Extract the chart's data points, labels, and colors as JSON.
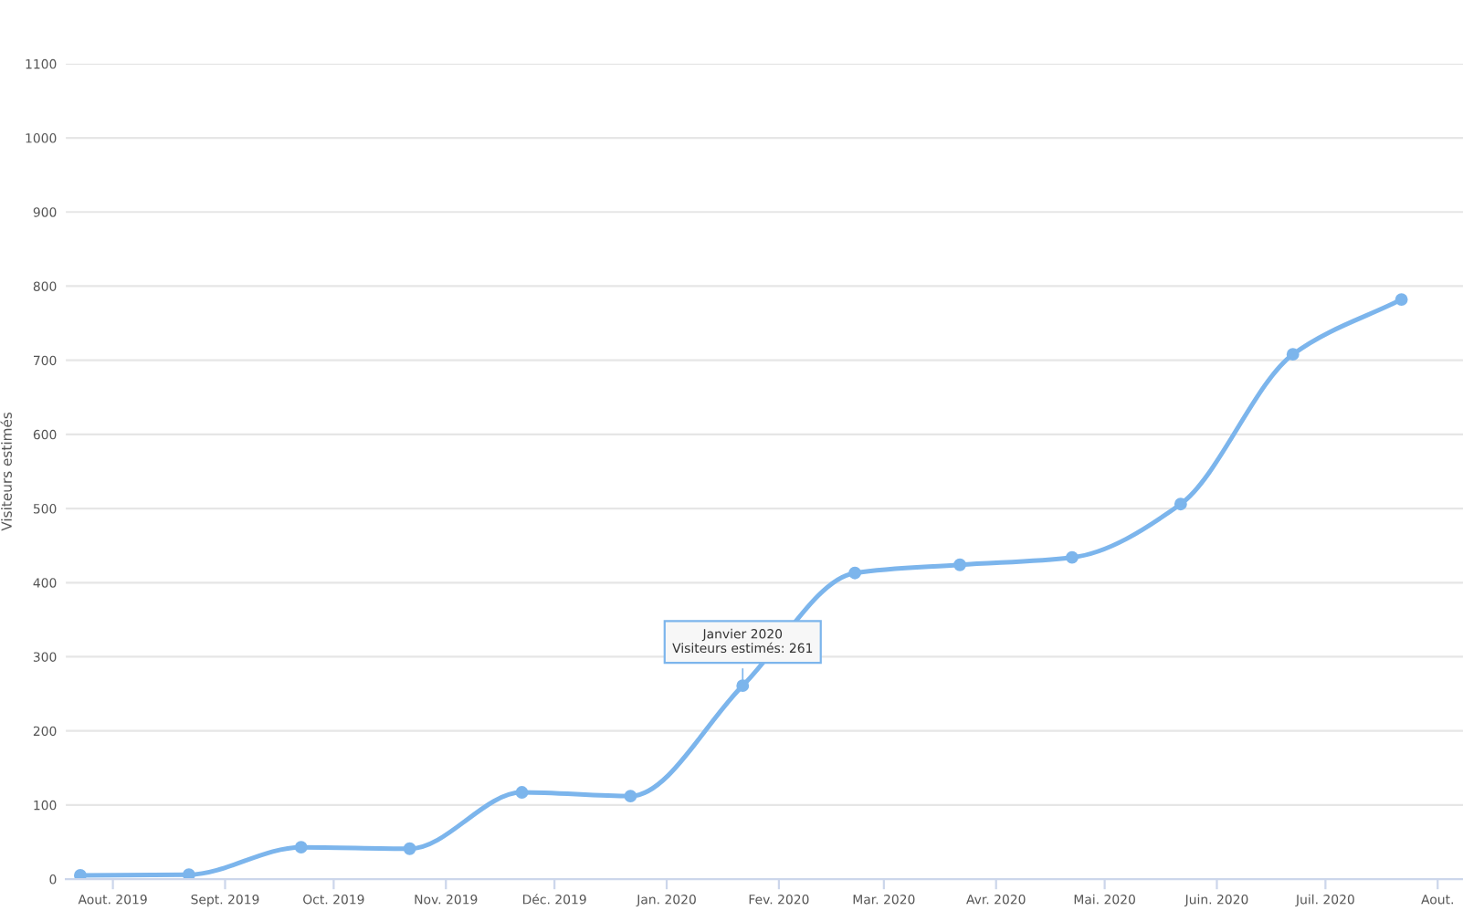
{
  "chart_data": {
    "type": "line",
    "ylabel": "Visiteurs estimés",
    "x": [
      "2019-07-23",
      "2019-08-22",
      "2019-09-22",
      "2019-10-22",
      "2019-11-22",
      "2019-12-22",
      "2020-01-22",
      "2020-02-22",
      "2020-03-22",
      "2020-04-22",
      "2020-05-22",
      "2020-06-22",
      "2020-07-22"
    ],
    "series": [
      {
        "color": "#7cb5ec",
        "values": [
          5,
          6,
          43,
          41,
          117,
          112,
          261,
          413,
          424,
          434,
          506,
          708,
          782
        ]
      }
    ],
    "xlim": [
      "2019-07-19",
      "2020-08-08"
    ],
    "xticks": [
      {
        "value": "2019-08-01",
        "label": "Aout. 2019"
      },
      {
        "value": "2019-09-01",
        "label": "Sept. 2019"
      },
      {
        "value": "2019-10-01",
        "label": "Oct. 2019"
      },
      {
        "value": "2019-11-01",
        "label": "Nov. 2019"
      },
      {
        "value": "2019-12-01",
        "label": "Déc. 2019"
      },
      {
        "value": "2020-01-01",
        "label": "Jan. 2020"
      },
      {
        "value": "2020-02-01",
        "label": "Fev. 2020"
      },
      {
        "value": "2020-03-01",
        "label": "Mar. 2020"
      },
      {
        "value": "2020-04-01",
        "label": "Avr. 2020"
      },
      {
        "value": "2020-05-01",
        "label": "Mai. 2020"
      },
      {
        "value": "2020-06-01",
        "label": "Juin. 2020"
      },
      {
        "value": "2020-07-01",
        "label": "Juil. 2020"
      },
      {
        "value": "2020-08-01",
        "label": "Aout."
      }
    ],
    "ylim": [
      0,
      1100
    ],
    "yticks": [
      0,
      100,
      200,
      300,
      400,
      500,
      600,
      700,
      800,
      900,
      1000,
      1100
    ],
    "grid": "y",
    "legend": false,
    "marker": "circle",
    "line_style": "solid",
    "annotations": [
      {
        "text": "Janvier 2020\nVisiteurs estimés: 261",
        "x": "2020-01-22",
        "y": 261
      }
    ]
  }
}
